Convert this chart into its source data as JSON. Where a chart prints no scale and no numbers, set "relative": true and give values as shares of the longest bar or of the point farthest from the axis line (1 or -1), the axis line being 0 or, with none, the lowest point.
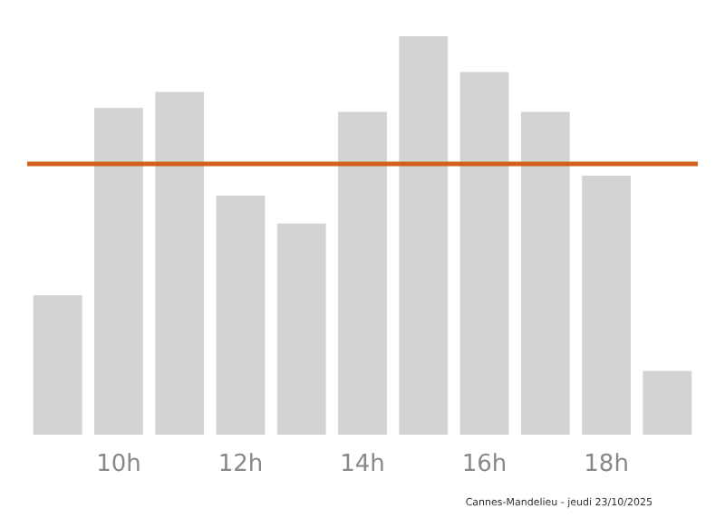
{
  "chart_data": {
    "type": "bar",
    "relative": true,
    "categories": [
      null,
      "10h",
      null,
      "12h",
      null,
      "14h",
      null,
      "16h",
      null,
      "18h",
      null
    ],
    "values": [
      0.35,
      0.82,
      0.86,
      0.6,
      0.53,
      0.81,
      1,
      0.91,
      0.81,
      0.65,
      0.16
    ],
    "color": "#d3d3d3",
    "ref_lines": [
      {
        "axis": "y",
        "value": 0.68,
        "color": "#d2601a",
        "line_style": "solid"
      }
    ],
    "grid": false,
    "annotations": [
      "Cannes-Mandelieu - jeudi 23/10/2025"
    ]
  }
}
